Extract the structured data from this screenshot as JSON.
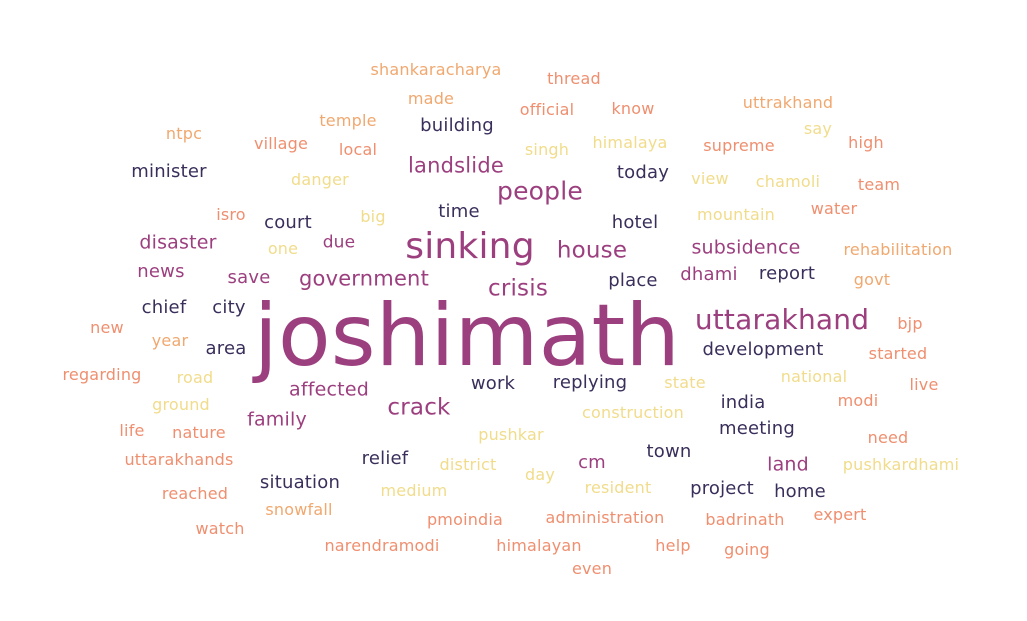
{
  "palette": {
    "dark_navy": "#3a2f5b",
    "purple": "#9c3f7f",
    "pink": "#d5637a",
    "salmon": "#ef8f6f",
    "orange": "#f0a86f",
    "pale_yellow": "#f1dc8b"
  },
  "words": [
    {
      "text": "joshimath",
      "color": "purple"
    },
    {
      "text": "sinking",
      "color": "purple"
    },
    {
      "text": "uttarakhand",
      "color": "purple"
    },
    {
      "text": "people",
      "color": "purple"
    },
    {
      "text": "crack",
      "color": "purple"
    },
    {
      "text": "house",
      "color": "purple"
    },
    {
      "text": "crisis",
      "color": "purple"
    },
    {
      "text": "government",
      "color": "purple"
    },
    {
      "text": "landslide",
      "color": "purple"
    },
    {
      "text": "subsidence",
      "color": "purple"
    },
    {
      "text": "disaster",
      "color": "purple"
    },
    {
      "text": "affected",
      "color": "purple"
    },
    {
      "text": "family",
      "color": "purple"
    },
    {
      "text": "land",
      "color": "purple"
    },
    {
      "text": "save",
      "color": "purple"
    },
    {
      "text": "news",
      "color": "purple"
    },
    {
      "text": "dhami",
      "color": "purple"
    },
    {
      "text": "cm",
      "color": "purple"
    },
    {
      "text": "due",
      "color": "purple"
    },
    {
      "text": "building",
      "color": "dark_navy"
    },
    {
      "text": "minister",
      "color": "dark_navy"
    },
    {
      "text": "today",
      "color": "dark_navy"
    },
    {
      "text": "court",
      "color": "dark_navy"
    },
    {
      "text": "time",
      "color": "dark_navy"
    },
    {
      "text": "hotel",
      "color": "dark_navy"
    },
    {
      "text": "report",
      "color": "dark_navy"
    },
    {
      "text": "place",
      "color": "dark_navy"
    },
    {
      "text": "chief",
      "color": "dark_navy"
    },
    {
      "text": "city",
      "color": "dark_navy"
    },
    {
      "text": "development",
      "color": "dark_navy"
    },
    {
      "text": "area",
      "color": "dark_navy"
    },
    {
      "text": "work",
      "color": "dark_navy"
    },
    {
      "text": "replying",
      "color": "dark_navy"
    },
    {
      "text": "india",
      "color": "dark_navy"
    },
    {
      "text": "meeting",
      "color": "dark_navy"
    },
    {
      "text": "town",
      "color": "dark_navy"
    },
    {
      "text": "relief",
      "color": "dark_navy"
    },
    {
      "text": "situation",
      "color": "dark_navy"
    },
    {
      "text": "project",
      "color": "dark_navy"
    },
    {
      "text": "home",
      "color": "dark_navy"
    },
    {
      "text": "shankaracharya",
      "color": "orange"
    },
    {
      "text": "thread",
      "color": "salmon"
    },
    {
      "text": "made",
      "color": "orange"
    },
    {
      "text": "official",
      "color": "salmon"
    },
    {
      "text": "know",
      "color": "salmon"
    },
    {
      "text": "uttrakhand",
      "color": "orange"
    },
    {
      "text": "ntpc",
      "color": "orange"
    },
    {
      "text": "temple",
      "color": "orange"
    },
    {
      "text": "village",
      "color": "salmon"
    },
    {
      "text": "local",
      "color": "salmon"
    },
    {
      "text": "singh",
      "color": "pale_yellow"
    },
    {
      "text": "himalaya",
      "color": "pale_yellow"
    },
    {
      "text": "supreme",
      "color": "salmon"
    },
    {
      "text": "say",
      "color": "pale_yellow"
    },
    {
      "text": "high",
      "color": "salmon"
    },
    {
      "text": "danger",
      "color": "pale_yellow"
    },
    {
      "text": "view",
      "color": "pale_yellow"
    },
    {
      "text": "chamoli",
      "color": "pale_yellow"
    },
    {
      "text": "team",
      "color": "salmon"
    },
    {
      "text": "isro",
      "color": "salmon"
    },
    {
      "text": "big",
      "color": "pale_yellow"
    },
    {
      "text": "mountain",
      "color": "pale_yellow"
    },
    {
      "text": "water",
      "color": "salmon"
    },
    {
      "text": "one",
      "color": "pale_yellow"
    },
    {
      "text": "rehabilitation",
      "color": "orange"
    },
    {
      "text": "govt",
      "color": "orange"
    },
    {
      "text": "new",
      "color": "salmon"
    },
    {
      "text": "bjp",
      "color": "salmon"
    },
    {
      "text": "year",
      "color": "orange"
    },
    {
      "text": "started",
      "color": "salmon"
    },
    {
      "text": "regarding",
      "color": "salmon"
    },
    {
      "text": "road",
      "color": "pale_yellow"
    },
    {
      "text": "state",
      "color": "pale_yellow"
    },
    {
      "text": "national",
      "color": "pale_yellow"
    },
    {
      "text": "live",
      "color": "salmon"
    },
    {
      "text": "ground",
      "color": "pale_yellow"
    },
    {
      "text": "construction",
      "color": "pale_yellow"
    },
    {
      "text": "modi",
      "color": "salmon"
    },
    {
      "text": "life",
      "color": "salmon"
    },
    {
      "text": "nature",
      "color": "salmon"
    },
    {
      "text": "pushkar",
      "color": "pale_yellow"
    },
    {
      "text": "need",
      "color": "salmon"
    },
    {
      "text": "uttarakhands",
      "color": "salmon"
    },
    {
      "text": "district",
      "color": "pale_yellow"
    },
    {
      "text": "day",
      "color": "pale_yellow"
    },
    {
      "text": "pushkardhami",
      "color": "pale_yellow"
    },
    {
      "text": "reached",
      "color": "salmon"
    },
    {
      "text": "medium",
      "color": "pale_yellow"
    },
    {
      "text": "resident",
      "color": "pale_yellow"
    },
    {
      "text": "snowfall",
      "color": "orange"
    },
    {
      "text": "pmoindia",
      "color": "salmon"
    },
    {
      "text": "administration",
      "color": "salmon"
    },
    {
      "text": "badrinath",
      "color": "salmon"
    },
    {
      "text": "expert",
      "color": "salmon"
    },
    {
      "text": "watch",
      "color": "salmon"
    },
    {
      "text": "narendramodi",
      "color": "salmon"
    },
    {
      "text": "himalayan",
      "color": "salmon"
    },
    {
      "text": "help",
      "color": "salmon"
    },
    {
      "text": "going",
      "color": "salmon"
    },
    {
      "text": "even",
      "color": "salmon"
    }
  ]
}
